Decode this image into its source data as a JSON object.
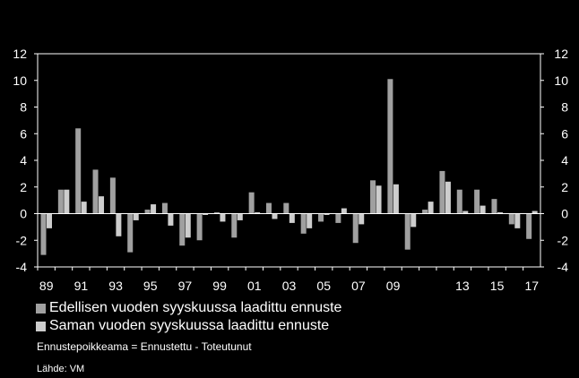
{
  "chart_data": {
    "type": "bar",
    "y_range": [
      -4,
      12
    ],
    "y_ticks": [
      "12",
      "10",
      "8",
      "6",
      "4",
      "2",
      "0",
      "-2",
      "-4"
    ],
    "x_tick_labels": [
      "89",
      "91",
      "93",
      "95",
      "97",
      "99",
      "01",
      "03",
      "05",
      "07",
      "09",
      "13",
      "15",
      "17"
    ],
    "x_tick_years": [
      1989,
      1991,
      1993,
      1995,
      1997,
      1999,
      2001,
      2003,
      2005,
      2007,
      2009,
      2013,
      2015,
      2017
    ],
    "years": [
      1989,
      1990,
      1991,
      1992,
      1993,
      1994,
      1995,
      1996,
      1997,
      1998,
      1999,
      2000,
      2001,
      2002,
      2003,
      2004,
      2005,
      2006,
      2007,
      2008,
      2009,
      2010,
      2011,
      2012,
      2013,
      2014,
      2015,
      2016,
      2017
    ],
    "series": [
      {
        "name": "Edellisen vuoden syyskuussa laadittu ennuste",
        "color": "#a0a0a0",
        "values": [
          -3.1,
          1.8,
          6.4,
          3.3,
          2.7,
          -2.9,
          0.3,
          0.8,
          -2.4,
          -2.0,
          0.1,
          -1.8,
          1.6,
          0.8,
          0.8,
          -1.5,
          -0.6,
          -0.7,
          -2.2,
          2.5,
          10.1,
          -2.7,
          0.3,
          3.2,
          1.8,
          1.8,
          1.1,
          -0.8,
          -1.9
        ]
      },
      {
        "name": "Saman vuoden syyskuussa laadittu ennuste",
        "color": "#cdcdcd",
        "values": [
          -1.1,
          1.8,
          0.9,
          1.3,
          -1.7,
          -0.5,
          0.7,
          -0.9,
          -1.8,
          -0.1,
          -0.6,
          -0.5,
          0.1,
          -0.4,
          -0.7,
          -1.1,
          -0.1,
          0.4,
          -0.8,
          2.1,
          2.2,
          -1.0,
          0.9,
          2.4,
          0.2,
          0.6,
          0.1,
          -1.1,
          0.2
        ]
      }
    ]
  },
  "legend": {
    "items": [
      {
        "label": "Edellisen vuoden syyskuussa laadittu ennuste",
        "color": "#a0a0a0"
      },
      {
        "label": "Saman vuoden syyskuussa laadittu ennuste",
        "color": "#cdcdcd"
      }
    ]
  },
  "note": "Ennustepoikkeama = Ennustettu - Toteutunut",
  "source": "Lähde: VM"
}
